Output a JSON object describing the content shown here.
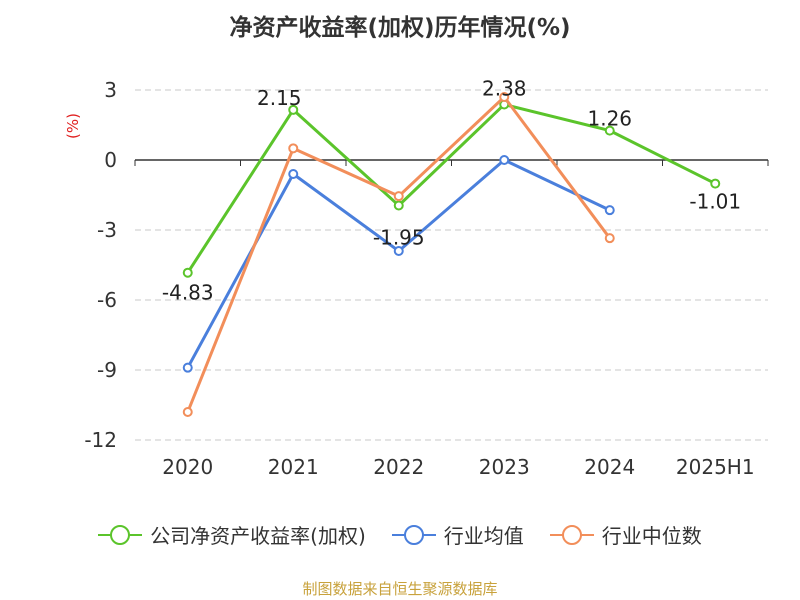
{
  "chart_data": {
    "type": "line",
    "title": "净资产收益率(加权)历年情况(%)",
    "ylabel": "(%)",
    "categories": [
      "2020",
      "2021",
      "2022",
      "2023",
      "2024",
      "2025H1"
    ],
    "ylim": [
      -12,
      3
    ],
    "yticks": [
      3,
      0,
      -3,
      -6,
      -9,
      -12
    ],
    "grid": true,
    "legend_position": "bottom",
    "series": [
      {
        "name": "公司净资产收益率(加权)",
        "color": "#5bc42b",
        "values": [
          -4.83,
          2.15,
          -1.95,
          2.38,
          1.26,
          -1.01
        ],
        "labels": [
          "-4.83",
          "2.15",
          "-1.95",
          "2.38",
          "1.26",
          "-1.01"
        ]
      },
      {
        "name": "行业均值",
        "color": "#4a7fdc",
        "values": [
          -8.9,
          -0.6,
          -3.9,
          0.0,
          -2.15,
          null
        ]
      },
      {
        "name": "行业中位数",
        "color": "#f28e5a",
        "values": [
          -10.8,
          0.5,
          -1.55,
          2.7,
          -3.35,
          null
        ]
      }
    ]
  },
  "source": "制图数据来自恒生聚源数据库"
}
